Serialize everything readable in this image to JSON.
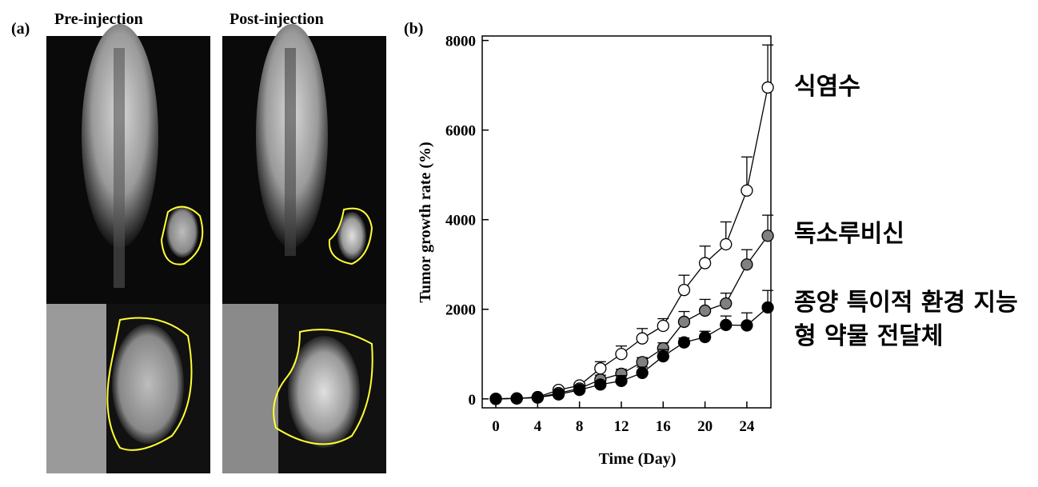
{
  "panel_a": {
    "label": "(a)",
    "titles": [
      "Pre-injection",
      "Post-injection"
    ]
  },
  "chart_data": {
    "type": "line",
    "label": "(b)",
    "x_label": "Time (Day)",
    "y_label": "Tumor growth rate (%)",
    "x": [
      0,
      2,
      4,
      6,
      8,
      10,
      12,
      14,
      16,
      18,
      20,
      22,
      24,
      26
    ],
    "xlim": [
      -1.3,
      26.3
    ],
    "xticks": [
      0,
      4,
      8,
      12,
      16,
      20,
      24
    ],
    "ylim": [
      -200,
      8100
    ],
    "yticks": [
      0,
      2000,
      4000,
      6000,
      8000
    ],
    "series": [
      {
        "name": "식염수",
        "color": "#ffffff",
        "values": [
          0,
          10,
          40,
          200,
          300,
          680,
          1000,
          1350,
          1630,
          2430,
          3030,
          3450,
          4650,
          6950
        ],
        "errors": [
          0,
          0,
          0,
          0,
          50,
          150,
          180,
          220,
          160,
          330,
          380,
          500,
          750,
          950
        ]
      },
      {
        "name": "독소루비신",
        "color": "#808080",
        "values": [
          0,
          10,
          30,
          130,
          230,
          430,
          560,
          820,
          1130,
          1720,
          1970,
          2130,
          3000,
          3640
        ],
        "errors": [
          0,
          0,
          0,
          0,
          50,
          100,
          100,
          100,
          120,
          230,
          250,
          230,
          330,
          460
        ]
      },
      {
        "name": "종양 특이적 환경 지능형 약물 전달체",
        "color": "#000000",
        "values": [
          0,
          10,
          30,
          100,
          200,
          320,
          400,
          580,
          950,
          1260,
          1380,
          1650,
          1640,
          2040
        ],
        "errors": [
          0,
          0,
          0,
          0,
          0,
          80,
          120,
          130,
          150,
          100,
          130,
          200,
          280,
          380
        ]
      }
    ]
  }
}
